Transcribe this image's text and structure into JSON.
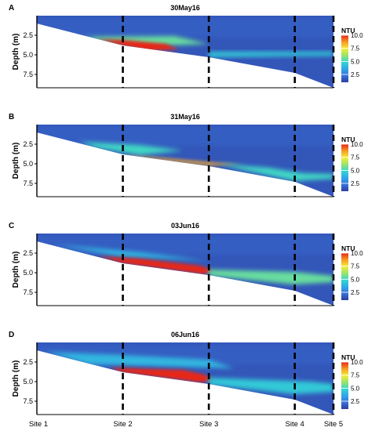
{
  "chart_data": {
    "type": "heatmap",
    "y_axis_label": "Depth (m)",
    "y_ticks": [
      2.5,
      5.0,
      7.5
    ],
    "y_tick_labels": [
      "2.5",
      "5.0",
      "7.5"
    ],
    "ylim": [
      0,
      9.2
    ],
    "x_sites": [
      "Site 1",
      "Site 2",
      "Site 3",
      "Site 4",
      "Site 5"
    ],
    "x_site_positions": [
      0,
      1,
      2,
      3,
      3.45
    ],
    "colorbar": {
      "label": "NTU",
      "ticks": [
        10.0,
        7.5,
        5.0,
        2.5
      ],
      "tick_labels": [
        "10.0",
        "7.5",
        "5.0",
        "2.5"
      ],
      "range": [
        1,
        10
      ],
      "colors": [
        "#2c3e9e",
        "#3a72d8",
        "#2fa8e8",
        "#35d6d0",
        "#9be36b",
        "#f4ee3a",
        "#f69a24",
        "#e82818"
      ]
    },
    "panels": [
      {
        "letter": "A",
        "title": "30May16",
        "bottom_depth": [
          1.0,
          3.8,
          5.3,
          7.3,
          9.2
        ],
        "plumes": [
          {
            "ntu": 5.5,
            "points": [
              [
                0.55,
                2.7
              ],
              [
                1.6,
                2.6
              ],
              [
                2.0,
                3.6
              ],
              [
                1.3,
                3.9
              ],
              [
                0.7,
                3.2
              ]
            ]
          },
          {
            "ntu": 10.0,
            "points": [
              [
                0.7,
                3.0
              ],
              [
                1.0,
                3.1
              ],
              [
                1.5,
                3.6
              ],
              [
                1.65,
                4.3
              ],
              [
                1.3,
                4.5
              ],
              [
                0.98,
                3.8
              ]
            ]
          },
          {
            "ntu": 4.5,
            "points": [
              [
                2.0,
                4.6
              ],
              [
                3.45,
                4.6
              ],
              [
                3.45,
                5.1
              ],
              [
                2.0,
                5.3
              ]
            ]
          }
        ]
      },
      {
        "letter": "B",
        "title": "31May16",
        "bottom_depth": [
          1.0,
          3.8,
          5.3,
          7.3,
          9.2
        ],
        "plumes": [
          {
            "ntu": 5.0,
            "points": [
              [
                0.5,
                2.2
              ],
              [
                1.2,
                2.6
              ],
              [
                1.7,
                3.3
              ],
              [
                1.2,
                3.9
              ],
              [
                0.7,
                3.0
              ]
            ]
          },
          {
            "ntu": 8.5,
            "points": [
              [
                1.0,
                3.9
              ],
              [
                1.5,
                4.3
              ],
              [
                2.0,
                4.8
              ],
              [
                2.4,
                5.1
              ],
              [
                2.0,
                5.2
              ],
              [
                1.3,
                4.4
              ]
            ]
          },
          {
            "ntu": 5.0,
            "points": [
              [
                2.1,
                5.0
              ],
              [
                2.7,
                5.5
              ],
              [
                3.1,
                6.2
              ],
              [
                3.45,
                6.3
              ],
              [
                3.45,
                6.9
              ],
              [
                3.0,
                7.2
              ],
              [
                2.4,
                5.8
              ]
            ]
          }
        ]
      },
      {
        "letter": "C",
        "title": "03Jun16",
        "bottom_depth": [
          1.0,
          3.8,
          5.3,
          7.3,
          9.2
        ],
        "plumes": [
          {
            "ntu": 4.0,
            "points": [
              [
                0.2,
                1.4
              ],
              [
                1.2,
                2.4
              ],
              [
                2.0,
                3.5
              ],
              [
                1.0,
                3.0
              ]
            ]
          },
          {
            "ntu": 10.0,
            "points": [
              [
                0.7,
                2.9
              ],
              [
                1.2,
                3.2
              ],
              [
                1.9,
                4.1
              ],
              [
                2.05,
                4.7
              ],
              [
                1.95,
                5.2
              ],
              [
                1.0,
                3.8
              ]
            ]
          },
          {
            "ntu": 5.5,
            "points": [
              [
                2.0,
                4.6
              ],
              [
                3.0,
                4.9
              ],
              [
                3.45,
                5.4
              ],
              [
                3.45,
                6.2
              ],
              [
                3.0,
                6.5
              ],
              [
                2.0,
                5.4
              ]
            ]
          }
        ]
      },
      {
        "letter": "D",
        "title": "06Jun16",
        "bottom_depth": [
          1.0,
          3.8,
          5.3,
          7.3,
          9.2
        ],
        "plumes": [
          {
            "ntu": 4.0,
            "points": [
              [
                0.1,
                1.2
              ],
              [
                1.0,
                1.6
              ],
              [
                2.0,
                2.2
              ],
              [
                2.3,
                3.3
              ],
              [
                1.3,
                3.0
              ],
              [
                0.6,
                2.8
              ]
            ]
          },
          {
            "ntu": 10.0,
            "points": [
              [
                0.85,
                3.2
              ],
              [
                1.7,
                3.5
              ],
              [
                1.95,
                4.1
              ],
              [
                2.05,
                4.8
              ],
              [
                1.9,
                5.1
              ],
              [
                0.98,
                3.8
              ]
            ]
          },
          {
            "ntu": 4.5,
            "points": [
              [
                2.0,
                4.5
              ],
              [
                3.2,
                5.0
              ],
              [
                3.45,
                5.3
              ],
              [
                3.45,
                6.3
              ],
              [
                3.0,
                6.6
              ],
              [
                2.0,
                5.4
              ]
            ]
          }
        ]
      }
    ]
  }
}
